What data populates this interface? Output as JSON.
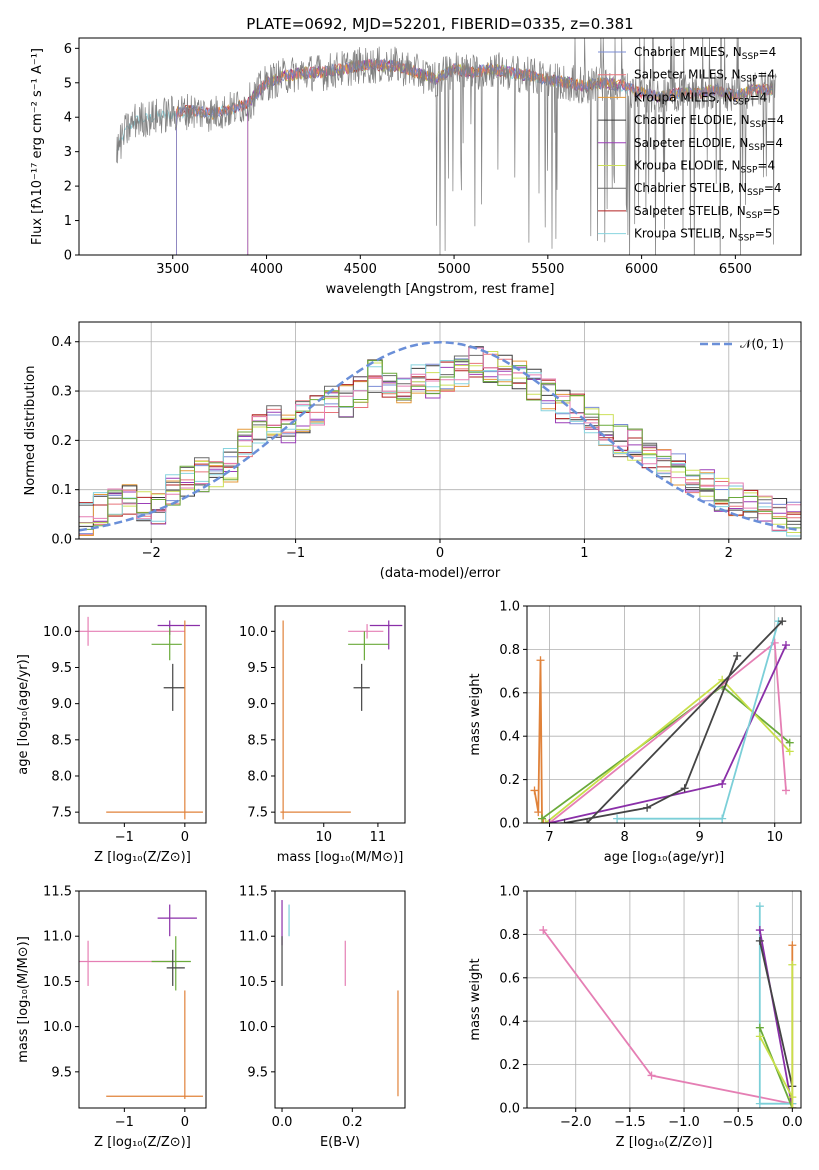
{
  "figure": {
    "title": "PLATE=0692, MJD=52201, FIBERID=0335, z=0.381"
  },
  "colors": {
    "Chabrier MILES": "#7b8cd6",
    "Salpeter MILES": "#e8737a",
    "Kroupa MILES": "#e59a3a",
    "Chabrier ELODIE": "#3a3a3a",
    "Salpeter ELODIE": "#9b3fb8",
    "Kroupa ELODIE": "#cde05a",
    "Chabrier STELIB": "#6a6a6a",
    "Salpeter STELIB": "#b22222",
    "Kroupa STELIB": "#88d4df",
    "gauss": "#6a8fd8",
    "pink": "#e57fb4",
    "orange": "#e0823a",
    "green": "#6aaa3a",
    "purple": "#8a2fa8",
    "dark": "#444444",
    "cyan": "#7ccfd8",
    "lime": "#c8e04a"
  },
  "chart_data": [
    {
      "id": "spectrum",
      "type": "line",
      "xlabel": "wavelength [Angstrom, rest frame]",
      "ylabel": "Flux [fλ10⁻¹⁷ erg cm⁻² s⁻¹ A⁻¹]",
      "xlim": [
        3000,
        6850
      ],
      "ylim": [
        0,
        6.3
      ],
      "xticks": [
        "3500",
        "4000",
        "4500",
        "5000",
        "5500",
        "6000",
        "6500"
      ],
      "yticks": [
        "0",
        "1",
        "2",
        "3",
        "4",
        "5",
        "6"
      ],
      "legend_position": "top-right",
      "legend": [
        "Chabrier MILES, N_SSP=4",
        "Salpeter MILES, N_SSP=4",
        "Kroupa MILES, N_SSP=4",
        "Chabrier ELODIE, N_SSP=4",
        "Salpeter ELODIE, N_SSP=4",
        "Kroupa ELODIE, N_SSP=4",
        "Chabrier STELIB, N_SSP=4",
        "Salpeter STELIB, N_SSP=5",
        "Kroupa STELIB, N_SSP=5"
      ],
      "continuum": {
        "x": [
          3200,
          3250,
          3300,
          3400,
          3500,
          3600,
          3700,
          3800,
          3900,
          4000,
          4100,
          4200,
          4300,
          4400,
          4500,
          4600,
          4700,
          4800,
          4900,
          5000,
          5100,
          5200,
          5300,
          5400,
          5500,
          5600,
          5700,
          5800,
          5900,
          6000,
          6100,
          6200,
          6300,
          6400,
          6500,
          6600,
          6700
        ],
        "y": [
          3.0,
          3.6,
          3.9,
          4.0,
          4.1,
          4.2,
          4.1,
          4.2,
          4.4,
          5.0,
          5.2,
          5.3,
          5.3,
          5.4,
          5.5,
          5.5,
          5.5,
          5.3,
          5.1,
          5.4,
          5.3,
          5.4,
          5.3,
          5.2,
          5.1,
          5.0,
          4.9,
          5.0,
          4.9,
          4.7,
          4.6,
          4.7,
          4.7,
          4.8,
          4.6,
          4.8,
          4.8
        ]
      }
    },
    {
      "id": "residuals",
      "type": "bar",
      "xlabel": "(data-model)/error",
      "ylabel": "Normed distribution",
      "xlim": [
        -2.5,
        2.5
      ],
      "ylim": [
        0,
        0.44
      ],
      "xticks": [
        "−2",
        "−1",
        "0",
        "1",
        "2"
      ],
      "yticks": [
        "0.0",
        "0.1",
        "0.2",
        "0.3",
        "0.4"
      ],
      "legend": [
        "𝒩(0, 1)"
      ],
      "legend_position": "top-right",
      "bin_width": 0.1,
      "x": [
        -2.5,
        -2.4,
        -2.3,
        -2.2,
        -2.1,
        -2.0,
        -1.9,
        -1.8,
        -1.7,
        -1.6,
        -1.5,
        -1.4,
        -1.3,
        -1.2,
        -1.1,
        -1.0,
        -0.9,
        -0.8,
        -0.7,
        -0.6,
        -0.5,
        -0.4,
        -0.3,
        -0.2,
        -0.1,
        0.0,
        0.1,
        0.2,
        0.3,
        0.4,
        0.5,
        0.6,
        0.7,
        0.8,
        0.9,
        1.0,
        1.1,
        1.2,
        1.3,
        1.4,
        1.5,
        1.6,
        1.7,
        1.8,
        1.9,
        2.0,
        2.1,
        2.2,
        2.3,
        2.4
      ],
      "values": [
        0.04,
        0.06,
        0.07,
        0.08,
        0.07,
        0.06,
        0.1,
        0.12,
        0.13,
        0.14,
        0.15,
        0.2,
        0.22,
        0.24,
        0.22,
        0.25,
        0.26,
        0.29,
        0.28,
        0.3,
        0.33,
        0.31,
        0.3,
        0.33,
        0.32,
        0.33,
        0.34,
        0.36,
        0.35,
        0.34,
        0.33,
        0.31,
        0.29,
        0.27,
        0.26,
        0.24,
        0.22,
        0.2,
        0.19,
        0.17,
        0.15,
        0.14,
        0.12,
        0.11,
        0.09,
        0.08,
        0.07,
        0.06,
        0.05,
        0.04
      ]
    },
    {
      "id": "age_vs_Z",
      "type": "scatter",
      "xlabel": "Z [log₁₀(Z/Z⊙)]",
      "ylabel": "age  [log₁₀(age/yr)]",
      "xlim": [
        -1.75,
        0.35
      ],
      "ylim": [
        7.35,
        10.35
      ],
      "xticks": [
        "−1",
        "0"
      ],
      "yticks": [
        "7.5",
        "8.0",
        "8.5",
        "9.0",
        "9.5",
        "10.0"
      ],
      "series": [
        {
          "x": -1.6,
          "y": 10.0,
          "xlo": -1.75,
          "xhi": 0.0,
          "ylo": 9.8,
          "yhi": 10.2,
          "color": "pink"
        },
        {
          "x": -0.25,
          "y": 10.08,
          "xlo": -0.45,
          "xhi": 0.25,
          "ylo": 9.95,
          "yhi": 10.15,
          "color": "purple"
        },
        {
          "x": -0.25,
          "y": 9.82,
          "xlo": -0.55,
          "xhi": -0.05,
          "ylo": 9.6,
          "yhi": 10.05,
          "color": "green"
        },
        {
          "x": -0.2,
          "y": 9.22,
          "xlo": -0.35,
          "xhi": 0.0,
          "ylo": 8.9,
          "yhi": 9.55,
          "color": "dark"
        },
        {
          "x": 0.0,
          "y": 7.5,
          "xlo": -1.3,
          "xhi": 0.3,
          "ylo": 7.4,
          "yhi": 10.15,
          "color": "orange"
        }
      ]
    },
    {
      "id": "age_vs_mass",
      "type": "scatter",
      "xlabel": "mass [log₁₀(M/M⊙)]",
      "ylabel": "",
      "xlim": [
        9.1,
        11.5
      ],
      "ylim": [
        7.35,
        10.35
      ],
      "xticks": [
        "10",
        "11"
      ],
      "yticks": [
        "7.5",
        "8.0",
        "8.5",
        "9.0",
        "9.5",
        "10.0"
      ],
      "series": [
        {
          "x": 10.8,
          "y": 10.0,
          "xlo": 10.45,
          "xhi": 11.1,
          "ylo": 9.9,
          "yhi": 10.1,
          "color": "pink"
        },
        {
          "x": 11.2,
          "y": 10.08,
          "xlo": 10.85,
          "xhi": 11.45,
          "ylo": 9.75,
          "yhi": 10.15,
          "color": "purple"
        },
        {
          "x": 10.75,
          "y": 9.82,
          "xlo": 10.45,
          "xhi": 11.2,
          "ylo": 9.6,
          "yhi": 10.0,
          "color": "green"
        },
        {
          "x": 10.7,
          "y": 9.22,
          "xlo": 10.55,
          "xhi": 10.85,
          "ylo": 8.9,
          "yhi": 9.55,
          "color": "dark"
        },
        {
          "x": 9.25,
          "y": 7.5,
          "xlo": 9.2,
          "xhi": 10.5,
          "ylo": 7.4,
          "yhi": 10.15,
          "color": "orange"
        }
      ]
    },
    {
      "id": "weight_vs_age",
      "type": "line",
      "xlabel": "age  [log₁₀(age/yr)]",
      "ylabel": "mass weight",
      "xlim": [
        6.7,
        10.35
      ],
      "ylim": [
        0,
        1.0
      ],
      "xticks": [
        "7",
        "8",
        "9",
        "10"
      ],
      "yticks": [
        "0.0",
        "0.2",
        "0.4",
        "0.6",
        "0.8",
        "1.0"
      ],
      "series": [
        {
          "color": "orange",
          "x": [
            6.8,
            6.85,
            6.88,
            6.9,
            6.92
          ],
          "y": [
            0.15,
            0.05,
            0.75,
            0.02,
            0.0
          ]
        },
        {
          "color": "green",
          "x": [
            6.9,
            9.3,
            10.2
          ],
          "y": [
            0.02,
            0.63,
            0.37
          ]
        },
        {
          "color": "lime",
          "x": [
            6.95,
            9.3,
            10.2
          ],
          "y": [
            0.0,
            0.66,
            0.33
          ]
        },
        {
          "color": "pink",
          "x": [
            7.0,
            10.0,
            10.15
          ],
          "y": [
            0.0,
            0.83,
            0.15
          ]
        },
        {
          "color": "purple",
          "x": [
            7.0,
            9.3,
            10.15
          ],
          "y": [
            0.0,
            0.18,
            0.82
          ]
        },
        {
          "color": "dark",
          "x": [
            7.2,
            8.3,
            8.8,
            9.5
          ],
          "y": [
            0.0,
            0.07,
            0.16,
            0.77
          ]
        },
        {
          "color": "cyan",
          "x": [
            7.9,
            9.3,
            10.05
          ],
          "y": [
            0.02,
            0.02,
            0.93
          ]
        },
        {
          "color": "dark",
          "x": [
            7.5,
            10.1
          ],
          "y": [
            0.0,
            0.93
          ]
        }
      ]
    },
    {
      "id": "mass_vs_Z",
      "type": "scatter",
      "xlabel": "Z [log₁₀(Z/Z⊙)]",
      "ylabel": "mass [log₁₀(M/M⊙)]",
      "xlim": [
        -1.75,
        0.35
      ],
      "ylim": [
        9.1,
        11.5
      ],
      "xticks": [
        "−1",
        "0"
      ],
      "yticks": [
        "9.5",
        "10.0",
        "10.5",
        "11.0",
        "11.5"
      ],
      "series": [
        {
          "x": -1.6,
          "y": 10.72,
          "xlo": -1.75,
          "xhi": -0.2,
          "ylo": 10.45,
          "yhi": 10.95,
          "color": "pink"
        },
        {
          "x": -0.25,
          "y": 11.2,
          "xlo": -0.45,
          "xhi": 0.2,
          "ylo": 11.0,
          "yhi": 11.35,
          "color": "purple"
        },
        {
          "x": -0.15,
          "y": 10.72,
          "xlo": -0.55,
          "xhi": 0.1,
          "ylo": 10.4,
          "yhi": 11.0,
          "color": "green"
        },
        {
          "x": -0.2,
          "y": 10.65,
          "xlo": -0.3,
          "xhi": 0.0,
          "ylo": 10.45,
          "yhi": 10.85,
          "color": "dark"
        },
        {
          "x": 0.0,
          "y": 9.23,
          "xlo": -1.3,
          "xhi": 0.3,
          "ylo": 9.2,
          "yhi": 10.4,
          "color": "orange"
        }
      ]
    },
    {
      "id": "mass_vs_ebv",
      "type": "scatter",
      "xlabel": "E(B-V)",
      "ylabel": "",
      "xlim": [
        -0.02,
        0.35
      ],
      "ylim": [
        9.1,
        11.5
      ],
      "xticks": [
        "0.0",
        "0.2"
      ],
      "yticks": [
        "9.5",
        "10.0",
        "10.5",
        "11.0",
        "11.5"
      ],
      "series": [
        {
          "x": 0.0,
          "y": 11.2,
          "ylo": 10.9,
          "yhi": 11.4,
          "color": "purple"
        },
        {
          "x": 0.0,
          "y": 10.72,
          "ylo": 10.45,
          "yhi": 11.0,
          "color": "dark"
        },
        {
          "x": 0.02,
          "y": 11.2,
          "ylo": 11.0,
          "yhi": 11.35,
          "color": "cyan"
        },
        {
          "x": 0.18,
          "y": 10.72,
          "ylo": 10.45,
          "yhi": 10.95,
          "color": "pink"
        },
        {
          "x": 0.33,
          "y": 9.8,
          "ylo": 9.23,
          "yhi": 10.4,
          "color": "orange"
        }
      ]
    },
    {
      "id": "weight_vs_Z",
      "type": "line",
      "xlabel": "Z [log₁₀(Z/Z⊙)]",
      "ylabel": "mass weight",
      "xlim": [
        -2.45,
        0.08
      ],
      "ylim": [
        0,
        1.0
      ],
      "xticks": [
        "−2.0",
        "−1.5",
        "−1.0",
        "−0.5",
        "0.0"
      ],
      "yticks": [
        "0.0",
        "0.2",
        "0.4",
        "0.6",
        "0.8",
        "1.0"
      ],
      "series": [
        {
          "color": "pink",
          "x": [
            -2.3,
            -1.3,
            0.0
          ],
          "y": [
            0.82,
            0.15,
            0.02
          ]
        },
        {
          "color": "cyan",
          "x": [
            -0.3,
            -0.3,
            0.0
          ],
          "y": [
            0.93,
            0.02,
            0.02
          ]
        },
        {
          "color": "purple",
          "x": [
            -0.3,
            0.0
          ],
          "y": [
            0.82,
            0.0
          ]
        },
        {
          "color": "dark",
          "x": [
            -0.3,
            0.0
          ],
          "y": [
            0.77,
            0.1
          ]
        },
        {
          "color": "green",
          "x": [
            -0.3,
            0.0
          ],
          "y": [
            0.37,
            0.0
          ]
        },
        {
          "color": "lime",
          "x": [
            -0.3,
            0.0
          ],
          "y": [
            0.33,
            0.05
          ]
        },
        {
          "color": "orange",
          "x": [
            0.0,
            0.0
          ],
          "y": [
            0.75,
            0.0
          ]
        },
        {
          "color": "lime",
          "x": [
            0.0,
            0.0
          ],
          "y": [
            0.66,
            0.0
          ]
        }
      ]
    }
  ]
}
